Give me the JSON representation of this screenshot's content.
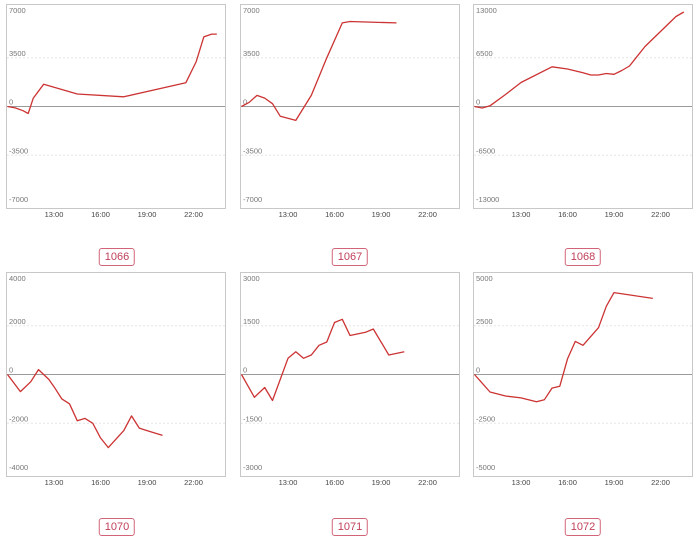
{
  "colors": {
    "line": "#cc3333",
    "badge": "#c0405a",
    "frame": "#c8c8c8"
  },
  "chart_data": [
    {
      "type": "line",
      "label": "1066",
      "x_ticks": [
        "13:00",
        "16:00",
        "19:00",
        "22:00"
      ],
      "y_ticks": [
        "7000",
        "3500",
        "0",
        "-3500",
        "-7000"
      ],
      "ylim": [
        -7000,
        7000
      ],
      "grid": true,
      "x": [
        "10:00",
        "10:30",
        "11:00",
        "11:20",
        "11:40",
        "12:20",
        "14:30",
        "17:30",
        "21:30",
        "22:10",
        "22:40",
        "23:10",
        "23:30"
      ],
      "y": [
        0,
        -100,
        -300,
        -500,
        600,
        1600,
        900,
        700,
        1700,
        3200,
        5000,
        5200,
        5200
      ]
    },
    {
      "type": "line",
      "label": "1067",
      "x_ticks": [
        "13:00",
        "16:00",
        "19:00",
        "22:00"
      ],
      "y_ticks": [
        "7000",
        "3500",
        "0",
        "-3500",
        "-7000"
      ],
      "ylim": [
        -7000,
        7000
      ],
      "grid": true,
      "x": [
        "10:00",
        "10:30",
        "11:00",
        "11:30",
        "12:00",
        "12:30",
        "13:30",
        "14:30",
        "15:30",
        "16:30",
        "17:00",
        "20:00"
      ],
      "y": [
        0,
        300,
        800,
        600,
        200,
        -700,
        -1000,
        800,
        3500,
        6000,
        6100,
        6000
      ]
    },
    {
      "type": "line",
      "label": "1068",
      "x_ticks": [
        "13:00",
        "16:00",
        "19:00",
        "22:00"
      ],
      "y_ticks": [
        "13000",
        "6500",
        "0",
        "-6500",
        "-13000"
      ],
      "ylim": [
        -13000,
        13000
      ],
      "grid": true,
      "x": [
        "10:00",
        "10:30",
        "11:00",
        "12:00",
        "13:00",
        "15:00",
        "16:00",
        "17:00",
        "17:30",
        "18:00",
        "18:30",
        "19:00",
        "19:30",
        "20:00",
        "21:00",
        "22:00",
        "23:00",
        "23:30"
      ],
      "y": [
        0,
        -200,
        100,
        1600,
        3200,
        5300,
        5000,
        4500,
        4200,
        4200,
        4400,
        4300,
        4800,
        5400,
        8000,
        10000,
        12000,
        12600
      ]
    },
    {
      "type": "line",
      "label": "1070",
      "x_ticks": [
        "13:00",
        "16:00",
        "19:00",
        "22:00"
      ],
      "y_ticks": [
        "4000",
        "2000",
        "0",
        "-2000",
        "-4000"
      ],
      "ylim": [
        -4000,
        4000
      ],
      "grid": true,
      "x": [
        "10:00",
        "10:50",
        "11:30",
        "12:00",
        "12:40",
        "13:00",
        "13:30",
        "14:00",
        "14:30",
        "15:00",
        "15:30",
        "16:00",
        "16:30",
        "17:30",
        "18:00",
        "18:30",
        "19:00",
        "20:00"
      ],
      "y": [
        0,
        -700,
        -300,
        200,
        -200,
        -500,
        -1000,
        -1200,
        -1900,
        -1800,
        -2000,
        -2600,
        -3000,
        -2300,
        -1700,
        -2200,
        -2300,
        -2500
      ]
    },
    {
      "type": "line",
      "label": "1071",
      "x_ticks": [
        "13:00",
        "16:00",
        "19:00",
        "22:00"
      ],
      "y_ticks": [
        "3000",
        "1500",
        "0",
        "-1500",
        "-3000"
      ],
      "ylim": [
        -3000,
        3000
      ],
      "grid": true,
      "x": [
        "10:00",
        "10:50",
        "11:30",
        "12:00",
        "13:00",
        "13:30",
        "14:00",
        "14:30",
        "15:00",
        "15:30",
        "16:00",
        "16:30",
        "17:00",
        "18:00",
        "18:30",
        "19:30",
        "20:30"
      ],
      "y": [
        0,
        -700,
        -400,
        -800,
        500,
        700,
        500,
        600,
        900,
        1000,
        1600,
        1700,
        1200,
        1300,
        1400,
        600,
        700
      ]
    },
    {
      "type": "line",
      "label": "1072",
      "x_ticks": [
        "13:00",
        "16:00",
        "19:00",
        "22:00"
      ],
      "y_ticks": [
        "5000",
        "2500",
        "0",
        "-2500",
        "-5000"
      ],
      "ylim": [
        -5000,
        5000
      ],
      "grid": true,
      "x": [
        "10:00",
        "11:00",
        "12:00",
        "13:00",
        "14:00",
        "14:30",
        "15:00",
        "15:30",
        "16:00",
        "16:30",
        "17:00",
        "18:00",
        "18:30",
        "19:00",
        "21:30"
      ],
      "y": [
        0,
        -900,
        -1100,
        -1200,
        -1400,
        -1300,
        -700,
        -600,
        800,
        1700,
        1500,
        2400,
        3500,
        4200,
        3900
      ]
    }
  ]
}
